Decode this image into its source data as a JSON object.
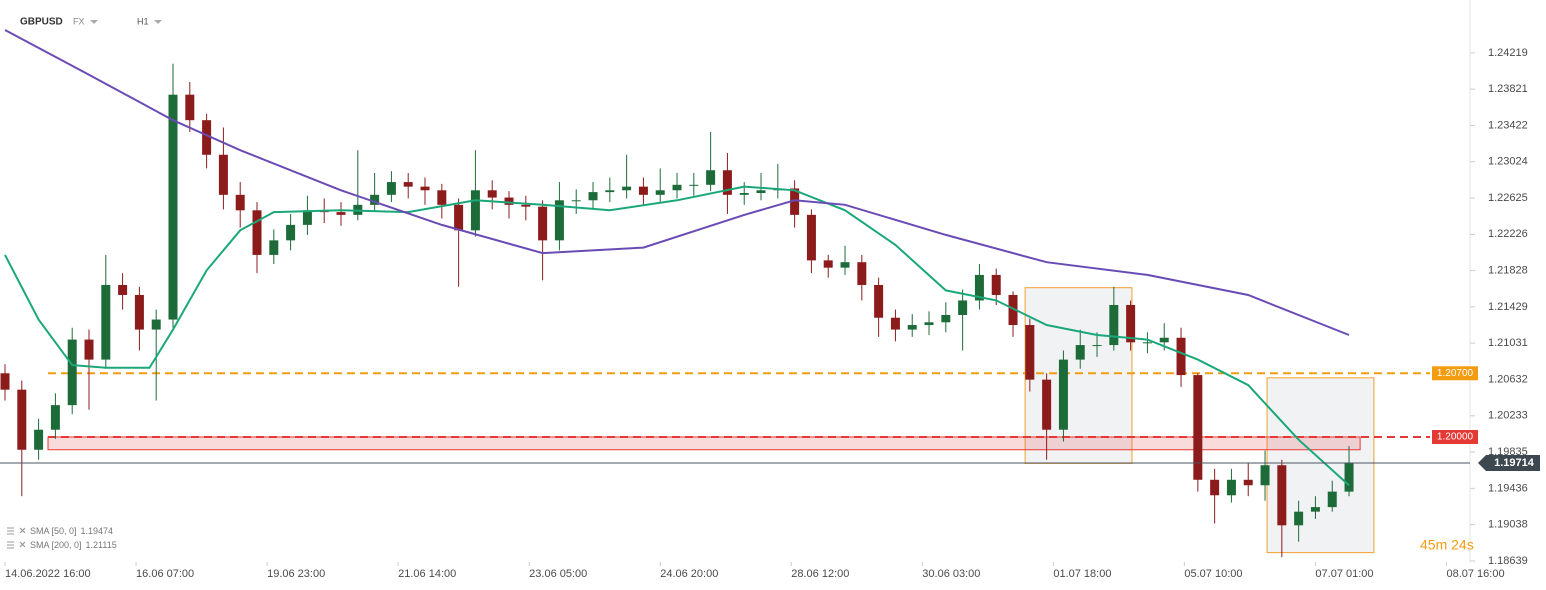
{
  "chart_data": {
    "type": "candlestick",
    "title": "GBPUSD",
    "market": "FX",
    "interval": "H1",
    "x": [
      0,
      5,
      10,
      15,
      20,
      25,
      30,
      35,
      40,
      45,
      50,
      55,
      60,
      65,
      70,
      75,
      80,
      85,
      90,
      95,
      100,
      105,
      110,
      115,
      120,
      125,
      130,
      135,
      140,
      145,
      150,
      155,
      160,
      165,
      170,
      175,
      180,
      185,
      190,
      195,
      200,
      205,
      210,
      215,
      220,
      225,
      230,
      235,
      240,
      245,
      250,
      255,
      260,
      265,
      270,
      275,
      280,
      285,
      290,
      295,
      300,
      305,
      310,
      315,
      320,
      325,
      330,
      335,
      340,
      345,
      350,
      355,
      360,
      365,
      370,
      375,
      380,
      385,
      390,
      395,
      400
    ],
    "open": [
      1.207,
      1.2052,
      1.1986,
      1.2008,
      1.2035,
      1.2107,
      1.2085,
      1.2167,
      1.2156,
      1.2118,
      1.2129,
      1.2376,
      1.2348,
      1.231,
      1.2266,
      1.2249,
      1.22,
      1.2216,
      1.2233,
      1.2249,
      1.2247,
      1.2244,
      1.2255,
      1.2266,
      1.228,
      1.2275,
      1.2271,
      1.2255,
      1.2227,
      1.2271,
      1.2263,
      1.2255,
      1.2253,
      1.2216,
      1.226,
      1.226,
      1.2269,
      1.2271,
      1.2275,
      1.2266,
      1.2271,
      1.2277,
      1.2277,
      1.2293,
      1.2266,
      1.2268,
      1.2271,
      1.2273,
      1.2244,
      1.2194,
      1.2186,
      1.2192,
      1.2167,
      1.2131,
      1.2118,
      1.2123,
      1.2126,
      1.2134,
      1.215,
      1.2178,
      1.2156,
      1.2123,
      1.2063,
      1.2008,
      1.2085,
      1.2101,
      1.2101,
      1.2145,
      1.2104,
      1.2104,
      1.2109,
      1.2068,
      1.1953,
      1.1936,
      1.1953,
      1.1947,
      1.1969,
      1.1903,
      1.1918,
      1.1923,
      1.194
    ],
    "high": [
      1.208,
      1.2062,
      1.202,
      1.2048,
      1.212,
      1.2118,
      1.22,
      1.218,
      1.2165,
      1.214,
      1.241,
      1.239,
      1.2355,
      1.234,
      1.228,
      1.2258,
      1.2228,
      1.2245,
      1.2265,
      1.2262,
      1.2258,
      1.2315,
      1.229,
      1.2292,
      1.229,
      1.2285,
      1.2278,
      1.2262,
      1.2315,
      1.2282,
      1.227,
      1.2265,
      1.226,
      1.228,
      1.2272,
      1.228,
      1.2285,
      1.231,
      1.2285,
      1.2295,
      1.229,
      1.229,
      1.2335,
      1.2312,
      1.228,
      1.229,
      1.23,
      1.2282,
      1.225,
      1.22,
      1.221,
      1.22,
      1.2175,
      1.214,
      1.2135,
      1.2138,
      1.2148,
      1.2162,
      1.219,
      1.2185,
      1.216,
      1.213,
      1.207,
      1.2095,
      1.2118,
      1.2115,
      1.2165,
      1.215,
      1.2115,
      1.2125,
      1.212,
      1.207,
      1.1965,
      1.1965,
      1.1972,
      1.1985,
      1.1975,
      1.193,
      1.1935,
      1.1952,
      1.199
    ],
    "low": [
      1.204,
      1.1935,
      1.1975,
      1.1998,
      1.2025,
      1.203,
      1.2075,
      1.214,
      1.2095,
      1.204,
      1.212,
      1.2335,
      1.2295,
      1.225,
      1.223,
      1.218,
      1.219,
      1.2205,
      1.2222,
      1.2235,
      1.2232,
      1.2238,
      1.2248,
      1.2258,
      1.2262,
      1.2255,
      1.224,
      1.2165,
      1.222,
      1.225,
      1.224,
      1.2238,
      1.2172,
      1.2205,
      1.2245,
      1.225,
      1.2258,
      1.2262,
      1.2255,
      1.2258,
      1.2262,
      1.2265,
      1.227,
      1.2245,
      1.2255,
      1.226,
      1.2262,
      1.223,
      1.218,
      1.2175,
      1.2178,
      1.215,
      1.211,
      1.2105,
      1.211,
      1.2112,
      1.2115,
      1.2095,
      1.214,
      1.2145,
      1.211,
      1.205,
      1.1975,
      1.1995,
      1.2075,
      1.2088,
      1.2095,
      1.2095,
      1.2092,
      1.2095,
      1.2055,
      1.194,
      1.1905,
      1.1928,
      1.1935,
      1.193,
      1.1868,
      1.1885,
      1.191,
      1.1918,
      1.1935
    ],
    "close": [
      1.2052,
      1.1986,
      1.2008,
      1.2035,
      1.2107,
      1.2085,
      1.2167,
      1.2156,
      1.2118,
      1.2129,
      1.2376,
      1.2348,
      1.231,
      1.2266,
      1.2249,
      1.22,
      1.2216,
      1.2233,
      1.2249,
      1.2247,
      1.2244,
      1.2255,
      1.2266,
      1.228,
      1.2275,
      1.2271,
      1.2255,
      1.2227,
      1.2271,
      1.2263,
      1.2255,
      1.2253,
      1.2216,
      1.226,
      1.226,
      1.2269,
      1.2271,
      1.2275,
      1.2266,
      1.2271,
      1.2277,
      1.2277,
      1.2293,
      1.2266,
      1.2268,
      1.2271,
      1.2273,
      1.2244,
      1.2194,
      1.2186,
      1.2192,
      1.2167,
      1.2131,
      1.2118,
      1.2123,
      1.2126,
      1.2134,
      1.215,
      1.2178,
      1.2156,
      1.2123,
      1.2063,
      1.2008,
      1.2085,
      1.2101,
      1.2101,
      1.2145,
      1.2104,
      1.2104,
      1.2109,
      1.2068,
      1.1953,
      1.1936,
      1.1953,
      1.1947,
      1.1969,
      1.1903,
      1.1918,
      1.1923,
      1.194,
      1.1971
    ],
    "colors": {
      "up": "#1e6b3a",
      "down": "#8c1c1c"
    },
    "xlim": [
      -1.488,
      436
    ],
    "xticks": [
      {
        "value": 0,
        "label": "14.06.2022 16:00"
      },
      {
        "value": 39,
        "label": "16.06 07:00"
      },
      {
        "value": 78,
        "label": "19.06 23:00"
      },
      {
        "value": 117,
        "label": "21.06 14:00"
      },
      {
        "value": 156,
        "label": "23.06 05:00"
      },
      {
        "value": 195,
        "label": "24.06 20:00"
      },
      {
        "value": 234,
        "label": "28.06 12:00"
      },
      {
        "value": 273,
        "label": "30.06 03:00"
      },
      {
        "value": 312,
        "label": "01.07 18:00"
      },
      {
        "value": 351,
        "label": "05.07 10:00"
      },
      {
        "value": 390,
        "label": "07.07 01:00"
      },
      {
        "value": 429,
        "label": "08.07 16:00"
      }
    ],
    "ylim": [
      1.18627,
      1.248
    ],
    "yticks": [
      1.24219,
      1.23821,
      1.23422,
      1.23024,
      1.22625,
      1.22226,
      1.21828,
      1.21429,
      1.21031,
      1.20632,
      1.20233,
      1.19835,
      1.19436,
      1.19038,
      1.18639
    ],
    "lines": [
      {
        "name": "SMA [50, 0]",
        "value": 1.19474,
        "color": "#1aa77a",
        "x": [
          0,
          10,
          20,
          30,
          43,
          50,
          60,
          70,
          80,
          100,
          120,
          140,
          160,
          180,
          200,
          220,
          235,
          250,
          265,
          280,
          295,
          310,
          325,
          340,
          355,
          370,
          385,
          400
        ],
        "values": [
          1.22,
          1.2129,
          1.2079,
          1.2076,
          1.2076,
          1.2118,
          1.2183,
          1.2227,
          1.2247,
          1.2249,
          1.2247,
          1.226,
          1.2255,
          1.2249,
          1.226,
          1.2275,
          1.2271,
          1.2249,
          1.2211,
          1.2161,
          1.215,
          1.2123,
          1.2112,
          1.2107,
          1.2085,
          1.2057,
          1.1997,
          1.1947
        ]
      },
      {
        "name": "SMA [200, 0]",
        "value": 1.21115,
        "color": "#6a4bb5",
        "x": [
          0,
          25,
          50,
          70,
          100,
          130,
          160,
          190,
          220,
          235,
          250,
          280,
          310,
          340,
          370,
          400
        ],
        "values": [
          1.2447,
          1.2398,
          1.2348,
          1.2315,
          1.2271,
          1.2233,
          1.2202,
          1.2208,
          1.2244,
          1.226,
          1.2255,
          1.2222,
          1.2192,
          1.2178,
          1.2156,
          1.2112
        ]
      }
    ],
    "levels": [
      {
        "value": 1.207,
        "label": "1.20700",
        "color": "#f39c12"
      },
      {
        "value": 1.2,
        "label": "1.20000",
        "color": "#e53935"
      }
    ],
    "zone": {
      "x": [
        12.8,
        403.3
      ],
      "y": [
        1.1986,
        1.2
      ],
      "color": "#e53935"
    },
    "boxes": [
      {
        "x": [
          303.6,
          335.4
        ],
        "y": [
          1.1971,
          1.2164
        ]
      },
      {
        "x": [
          375.6,
          407.4
        ],
        "y": [
          1.1873,
          1.2065
        ]
      }
    ],
    "box_color": "#f0a030",
    "current_price": 1.19714,
    "countdown": "45m 24s"
  }
}
